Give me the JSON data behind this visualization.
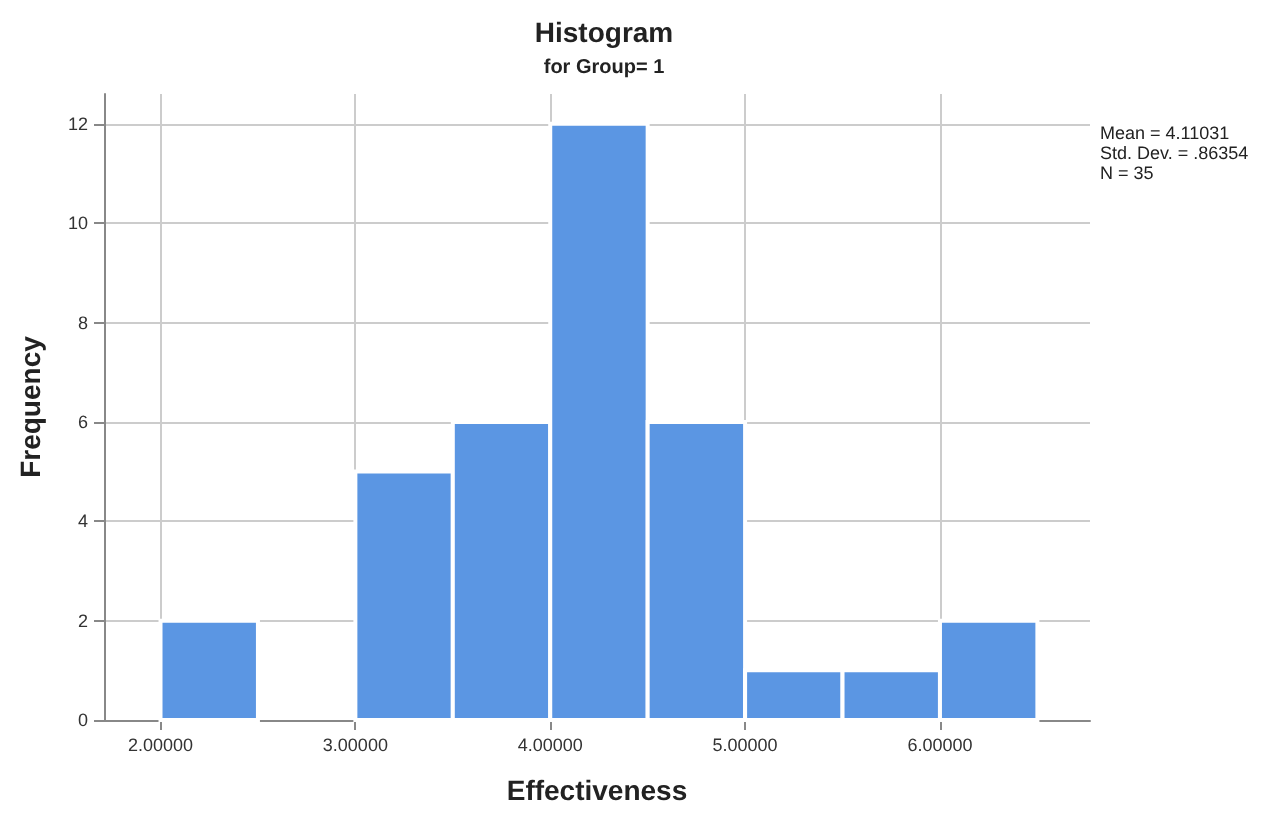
{
  "chart_data": {
    "type": "histogram",
    "title": "Histogram",
    "subtitle": "for Group= 1",
    "xlabel": "Effectiveness",
    "ylabel": "Frequency",
    "bins": [
      2.0,
      2.5,
      3.0,
      3.5,
      4.0,
      4.5,
      5.0,
      5.5,
      6.0,
      6.5
    ],
    "values": [
      2,
      0,
      5,
      6,
      12,
      6,
      1,
      1,
      2
    ],
    "color": "#5b96e3",
    "xlim": [
      1.71,
      6.77
    ],
    "xticks": [
      {
        "value": 2,
        "label": "2.00000"
      },
      {
        "value": 3,
        "label": "3.00000"
      },
      {
        "value": 4,
        "label": "4.00000"
      },
      {
        "value": 5,
        "label": "5.00000"
      },
      {
        "value": 6,
        "label": "6.00000"
      }
    ],
    "ylim": [
      0,
      12.6
    ],
    "yticks": [
      0,
      2,
      4,
      6,
      8,
      10,
      12
    ],
    "grid": true,
    "annotations": [
      "Mean = 4.11031",
      "Std. Dev. = .86354",
      "N = 35"
    ]
  }
}
